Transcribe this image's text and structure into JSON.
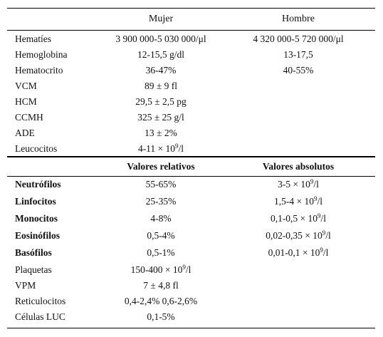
{
  "header": {
    "mujer": "Mujer",
    "hombre": "Hombre"
  },
  "top_rows": [
    {
      "label": "Hematíes",
      "mujer": "3 900 000-5 030 000/μl",
      "hombre": "4 320 000-5 720 000/μl"
    },
    {
      "label": "Hemoglobina",
      "mujer": "12-15,5 g/dl",
      "hombre": "13-17,5"
    },
    {
      "label": "Hematocrito",
      "mujer": "36-47%",
      "hombre": "40-55%"
    },
    {
      "label": "VCM",
      "mujer": "89 ± 9 fl",
      "hombre": ""
    },
    {
      "label": "HCM",
      "mujer": "29,5 ± 2,5 pg",
      "hombre": ""
    },
    {
      "label": "CCMH",
      "mujer": "325 ± 25 g/l",
      "hombre": ""
    },
    {
      "label": "ADE",
      "mujer": "13 ± 2%",
      "hombre": ""
    },
    {
      "label": "Leucocitos",
      "mujer": "4-11 × 10",
      "mujer_exp": "9",
      "mujer_unit": "/l",
      "hombre": ""
    }
  ],
  "subheader": {
    "relativos": "Valores relativos",
    "absolutos": "Valores absolutos"
  },
  "bottom_rows": [
    {
      "label": "Neutrófilos",
      "rel": "55-65%",
      "abs": "3-5 × 10",
      "abs_exp": "9",
      "abs_unit": "/l"
    },
    {
      "label": "Linfocitos",
      "rel": "25-35%",
      "abs": "1,5-4 × 10",
      "abs_exp": "9",
      "abs_unit": "/l"
    },
    {
      "label": "Monocitos",
      "rel": "4-8%",
      "abs": "0,1-0,5 × 10",
      "abs_exp": "9",
      "abs_unit": "/l"
    },
    {
      "label": "Eosinófilos",
      "rel": "0,5-4%",
      "abs": "0,02-0,35 × 10",
      "abs_exp": "9",
      "abs_unit": "/l"
    },
    {
      "label": "Basófilos",
      "rel": "0,5-1%",
      "abs": "0,01-0,1 × 10",
      "abs_exp": "9",
      "abs_unit": "/l"
    },
    {
      "label": "Plaquetas",
      "rel": "150-400 × 10",
      "rel_exp": "9",
      "rel_unit": "/l",
      "abs": ""
    },
    {
      "label": "VPM",
      "rel": "7 ± 4,8 fl",
      "abs": ""
    },
    {
      "label": "Reticulocitos",
      "rel": "0,4-2,4% 0,6-2,6%",
      "abs": ""
    },
    {
      "label": "Células LUC",
      "rel": "0,1-5%",
      "abs": ""
    }
  ]
}
